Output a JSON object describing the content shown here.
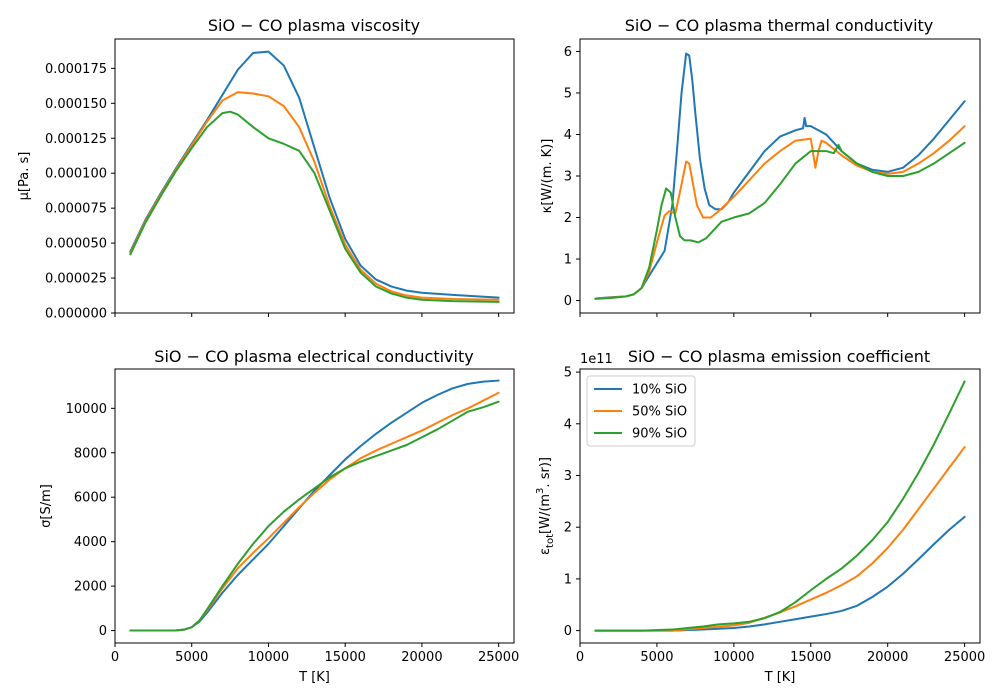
{
  "colors": {
    "s10": "#1f77b4",
    "s50": "#ff7f0e",
    "s90": "#2ca02c"
  },
  "legend": [
    "10% SiO",
    "50% SiO",
    "90% SiO"
  ],
  "chart_data": [
    {
      "type": "line",
      "title": "SiO − CO plasma viscosity",
      "xlabel": "",
      "ylabel": "μ[Pa. s]",
      "xlim": [
        0,
        26000
      ],
      "ylim": [
        0,
        0.000196
      ],
      "xticks": [
        0,
        5000,
        10000,
        15000,
        20000,
        25000
      ],
      "xtick_labels": [],
      "yticks": [
        0,
        2.5e-05,
        5e-05,
        7.5e-05,
        0.0001,
        0.000125,
        0.00015,
        0.000175
      ],
      "ytick_labels": [
        "0.000000",
        "0.000025",
        "0.000050",
        "0.000075",
        "0.000100",
        "0.000125",
        "0.000150",
        "0.000175"
      ],
      "series": [
        {
          "name": "10% SiO",
          "x": [
            1000,
            2000,
            3000,
            4000,
            5000,
            6000,
            7000,
            8000,
            9000,
            10000,
            11000,
            12000,
            13000,
            14000,
            15000,
            16000,
            17000,
            18000,
            19000,
            20000,
            22000,
            25000
          ],
          "values": [
            4.4e-05,
            6.7e-05,
            8.6e-05,
            0.000104,
            0.000121,
            0.000138,
            0.000156,
            0.000174,
            0.000186,
            0.000187,
            0.000177,
            0.000154,
            0.000118,
            8.2e-05,
            5.3e-05,
            3.4e-05,
            2.4e-05,
            1.9e-05,
            1.6e-05,
            1.45e-05,
            1.3e-05,
            1.1e-05
          ]
        },
        {
          "name": "50% SiO",
          "x": [
            1000,
            2000,
            3000,
            4000,
            5000,
            6000,
            7000,
            8000,
            9000,
            10000,
            11000,
            12000,
            13000,
            14000,
            15000,
            16000,
            17000,
            18000,
            19000,
            20000,
            22000,
            25000
          ],
          "values": [
            4.3e-05,
            6.6e-05,
            8.5e-05,
            0.000103,
            0.00012,
            0.000137,
            0.000152,
            0.000158,
            0.000157,
            0.000155,
            0.000148,
            0.000133,
            0.000108,
            7.6e-05,
            4.9e-05,
            3.1e-05,
            2.1e-05,
            1.55e-05,
            1.25e-05,
            1.1e-05,
            1e-05,
            9.5e-06
          ]
        },
        {
          "name": "90% SiO",
          "x": [
            1000,
            2000,
            3000,
            4000,
            5000,
            6000,
            7000,
            7500,
            8000,
            9000,
            10000,
            11000,
            12000,
            13000,
            14000,
            15000,
            16000,
            17000,
            18000,
            19000,
            20000,
            22000,
            25000
          ],
          "values": [
            4.2e-05,
            6.5e-05,
            8.4e-05,
            0.000102,
            0.000118,
            0.000133,
            0.000143,
            0.000144,
            0.000142,
            0.000133,
            0.000125,
            0.000121,
            0.000116,
            0.0001,
            7.3e-05,
            4.6e-05,
            2.9e-05,
            1.9e-05,
            1.4e-05,
            1.1e-05,
            9.5e-06,
            8.5e-06,
            8e-06
          ]
        }
      ]
    },
    {
      "type": "line",
      "title": "SiO − CO plasma thermal conductivity",
      "xlabel": "",
      "ylabel": "κ[W/(m. K)]",
      "xlim": [
        0,
        26000
      ],
      "ylim": [
        -0.3,
        6.3
      ],
      "xticks": [
        0,
        5000,
        10000,
        15000,
        20000,
        25000
      ],
      "xtick_labels": [],
      "yticks": [
        0,
        1,
        2,
        3,
        4,
        5,
        6
      ],
      "ytick_labels": [
        "0",
        "1",
        "2",
        "3",
        "4",
        "5",
        "6"
      ],
      "series": [
        {
          "name": "10% SiO",
          "x": [
            1000,
            2000,
            3000,
            3500,
            4000,
            4500,
            5000,
            5500,
            6000,
            6300,
            6600,
            6900,
            7100,
            7300,
            7500,
            7800,
            8100,
            8400,
            8800,
            9200,
            9600,
            10000,
            11000,
            12000,
            13000,
            14000,
            14500,
            14600,
            14700,
            15000,
            16000,
            17000,
            18000,
            19000,
            20000,
            21000,
            22000,
            23000,
            24000,
            25000
          ],
          "values": [
            0.05,
            0.08,
            0.1,
            0.15,
            0.3,
            0.6,
            0.9,
            1.2,
            2.3,
            3.6,
            5.0,
            5.95,
            5.9,
            5.3,
            4.5,
            3.4,
            2.7,
            2.3,
            2.2,
            2.2,
            2.35,
            2.6,
            3.1,
            3.6,
            3.95,
            4.1,
            4.15,
            4.4,
            4.2,
            4.2,
            4.0,
            3.6,
            3.3,
            3.15,
            3.1,
            3.2,
            3.5,
            3.9,
            4.35,
            4.8
          ]
        },
        {
          "name": "50% SiO",
          "x": [
            1000,
            2000,
            3000,
            3500,
            4000,
            4500,
            5000,
            5500,
            5800,
            6200,
            6600,
            6900,
            7100,
            7300,
            7600,
            8000,
            8500,
            9000,
            10000,
            11000,
            12000,
            13000,
            14000,
            15000,
            15300,
            15500,
            15700,
            16000,
            17000,
            18000,
            19000,
            20000,
            21000,
            22000,
            23000,
            24000,
            25000
          ],
          "values": [
            0.05,
            0.07,
            0.1,
            0.15,
            0.3,
            0.7,
            1.4,
            2.05,
            2.15,
            2.1,
            2.8,
            3.35,
            3.3,
            2.9,
            2.3,
            2.0,
            2.0,
            2.15,
            2.5,
            2.9,
            3.3,
            3.6,
            3.85,
            3.9,
            3.2,
            3.6,
            3.85,
            3.8,
            3.5,
            3.25,
            3.1,
            3.05,
            3.1,
            3.3,
            3.55,
            3.85,
            4.2
          ]
        },
        {
          "name": "90% SiO",
          "x": [
            1000,
            2000,
            3000,
            3500,
            4000,
            4500,
            5000,
            5300,
            5600,
            5900,
            6200,
            6500,
            6800,
            7200,
            7700,
            8200,
            8700,
            9200,
            10000,
            11000,
            12000,
            13000,
            14000,
            15000,
            16000,
            16500,
            16800,
            17000,
            18000,
            19000,
            20000,
            21000,
            22000,
            23000,
            24000,
            25000
          ],
          "values": [
            0.04,
            0.06,
            0.1,
            0.15,
            0.3,
            0.8,
            1.7,
            2.3,
            2.7,
            2.6,
            2.0,
            1.55,
            1.45,
            1.45,
            1.4,
            1.5,
            1.7,
            1.9,
            2.0,
            2.1,
            2.35,
            2.8,
            3.3,
            3.6,
            3.6,
            3.55,
            3.75,
            3.6,
            3.3,
            3.1,
            3.0,
            3.0,
            3.1,
            3.3,
            3.55,
            3.8
          ]
        }
      ]
    },
    {
      "type": "line",
      "title": "SiO − CO plasma electrical conductivity",
      "xlabel": "T [K]",
      "ylabel": "σ[S/m]",
      "xlim": [
        0,
        26000
      ],
      "ylim": [
        -560,
        11770
      ],
      "xticks": [
        0,
        5000,
        10000,
        15000,
        20000,
        25000
      ],
      "xtick_labels": [
        "0",
        "5000",
        "10000",
        "15000",
        "20000",
        "25000"
      ],
      "yticks": [
        0,
        2000,
        4000,
        6000,
        8000,
        10000
      ],
      "ytick_labels": [
        "0",
        "2000",
        "4000",
        "6000",
        "8000",
        "10000"
      ],
      "series": [
        {
          "name": "10% SiO",
          "x": [
            1000,
            3000,
            4000,
            4500,
            5000,
            5500,
            6000,
            7000,
            8000,
            9000,
            10000,
            11000,
            12000,
            13000,
            14000,
            15000,
            16000,
            17000,
            18000,
            19000,
            20000,
            21000,
            22000,
            23000,
            24000,
            25000
          ],
          "values": [
            0,
            0,
            10,
            40,
            150,
            400,
            800,
            1700,
            2500,
            3200,
            3900,
            4700,
            5500,
            6300,
            7000,
            7700,
            8300,
            8850,
            9350,
            9800,
            10250,
            10600,
            10900,
            11100,
            11200,
            11250
          ]
        },
        {
          "name": "50% SiO",
          "x": [
            1000,
            3000,
            4000,
            4500,
            5000,
            5500,
            6000,
            7000,
            8000,
            9000,
            10000,
            11000,
            12000,
            13000,
            14000,
            15000,
            16000,
            17000,
            18000,
            19000,
            20000,
            21000,
            22000,
            23000,
            24000,
            25000
          ],
          "values": [
            0,
            0,
            10,
            40,
            150,
            450,
            900,
            1900,
            2800,
            3500,
            4150,
            4850,
            5550,
            6200,
            6800,
            7300,
            7750,
            8100,
            8400,
            8700,
            9000,
            9350,
            9700,
            10000,
            10350,
            10700
          ]
        },
        {
          "name": "90% SiO",
          "x": [
            1000,
            3000,
            4000,
            4500,
            5000,
            5500,
            6000,
            7000,
            8000,
            9000,
            10000,
            11000,
            12000,
            13000,
            14000,
            15000,
            16000,
            17000,
            18000,
            19000,
            20000,
            21000,
            22000,
            23000,
            24000,
            25000
          ],
          "values": [
            0,
            0,
            10,
            40,
            150,
            450,
            950,
            2000,
            3000,
            3900,
            4700,
            5350,
            5900,
            6400,
            6900,
            7300,
            7600,
            7850,
            8100,
            8350,
            8700,
            9050,
            9450,
            9850,
            10050,
            10300
          ]
        }
      ]
    },
    {
      "type": "line",
      "title": "SiO − CO plasma emission coefficient",
      "xlabel": "T [K]",
      "ylabel": "ε_tot[W/(m^3. sr)]",
      "offset_label": "1e11",
      "xlim": [
        0,
        26000
      ],
      "ylim": [
        -0.24,
        5.06
      ],
      "xticks": [
        0,
        5000,
        10000,
        15000,
        20000,
        25000
      ],
      "xtick_labels": [
        "0",
        "5000",
        "10000",
        "15000",
        "20000",
        "25000"
      ],
      "yticks": [
        0,
        1,
        2,
        3,
        4,
        5
      ],
      "ytick_labels": [
        "0",
        "1",
        "2",
        "3",
        "4",
        "5"
      ],
      "series": [
        {
          "name": "10% SiO",
          "x": [
            1000,
            4000,
            6000,
            8000,
            10000,
            11000,
            12000,
            13000,
            14000,
            15000,
            16000,
            17000,
            18000,
            19000,
            20000,
            21000,
            22000,
            23000,
            24000,
            25000
          ],
          "values": [
            0,
            0,
            0,
            0.02,
            0.05,
            0.08,
            0.12,
            0.17,
            0.22,
            0.27,
            0.32,
            0.38,
            0.48,
            0.65,
            0.85,
            1.1,
            1.38,
            1.67,
            1.95,
            2.2
          ]
        },
        {
          "name": "50% SiO",
          "x": [
            1000,
            4000,
            6000,
            8000,
            10000,
            11000,
            12000,
            13000,
            14000,
            15000,
            16000,
            17000,
            18000,
            19000,
            20000,
            21000,
            22000,
            23000,
            24000,
            25000
          ],
          "values": [
            0,
            0,
            0,
            0.05,
            0.1,
            0.15,
            0.25,
            0.35,
            0.47,
            0.6,
            0.73,
            0.88,
            1.05,
            1.3,
            1.6,
            1.95,
            2.35,
            2.75,
            3.15,
            3.55
          ]
        },
        {
          "name": "90% SiO",
          "x": [
            1000,
            4000,
            6000,
            7000,
            8000,
            9000,
            10000,
            11000,
            12000,
            13000,
            14000,
            15000,
            16000,
            17000,
            18000,
            19000,
            20000,
            21000,
            22000,
            23000,
            24000,
            25000
          ],
          "values": [
            0,
            0,
            0.02,
            0.05,
            0.08,
            0.12,
            0.14,
            0.17,
            0.24,
            0.36,
            0.55,
            0.78,
            1.0,
            1.2,
            1.45,
            1.75,
            2.1,
            2.55,
            3.05,
            3.6,
            4.2,
            4.82
          ]
        }
      ]
    }
  ]
}
